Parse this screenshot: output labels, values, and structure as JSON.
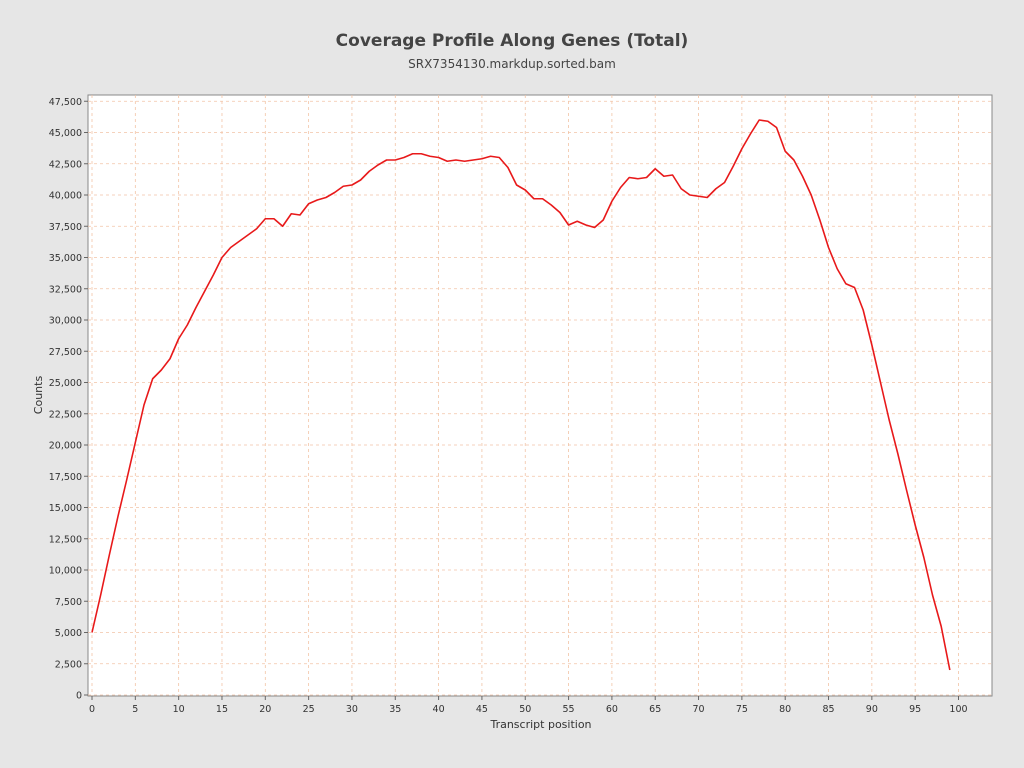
{
  "chart_data": {
    "type": "line",
    "title": "Coverage Profile Along Genes (Total)",
    "subtitle": "SRX7354130.markdup.sorted.bam",
    "xlabel": "Transcript position",
    "ylabel": "Counts",
    "xlim": [
      0,
      104
    ],
    "ylim": [
      0,
      48000
    ],
    "x_ticks": [
      0,
      5,
      10,
      15,
      20,
      25,
      30,
      35,
      40,
      45,
      50,
      55,
      60,
      65,
      70,
      75,
      80,
      85,
      90,
      95,
      100
    ],
    "x_tick_labels": [
      "0",
      "5",
      "10",
      "15",
      "20",
      "25",
      "30",
      "35",
      "40",
      "45",
      "50",
      "55",
      "60",
      "65",
      "70",
      "75",
      "80",
      "85",
      "90",
      "95",
      "100"
    ],
    "y_ticks": [
      0,
      2500,
      5000,
      7500,
      10000,
      12500,
      15000,
      17500,
      20000,
      22500,
      25000,
      27500,
      30000,
      32500,
      35000,
      37500,
      40000,
      42500,
      45000,
      47500
    ],
    "y_tick_labels": [
      "0",
      "2,500",
      "5,000",
      "7,500",
      "10,000",
      "12,500",
      "15,000",
      "17,500",
      "20,000",
      "22,500",
      "25,000",
      "27,500",
      "30,000",
      "32,500",
      "35,000",
      "37,500",
      "40,000",
      "42,500",
      "45,000",
      "47,500"
    ],
    "grid": true,
    "series": [
      {
        "color": "#e8191a",
        "x": [
          0,
          1,
          2,
          3,
          4,
          5,
          6,
          7,
          8,
          9,
          10,
          11,
          12,
          13,
          14,
          15,
          16,
          17,
          18,
          19,
          20,
          21,
          22,
          23,
          24,
          25,
          26,
          27,
          28,
          29,
          30,
          31,
          32,
          33,
          34,
          35,
          36,
          37,
          38,
          39,
          40,
          41,
          42,
          43,
          44,
          45,
          46,
          47,
          48,
          49,
          50,
          51,
          52,
          53,
          54,
          55,
          56,
          57,
          58,
          59,
          60,
          61,
          62,
          63,
          64,
          65,
          66,
          67,
          68,
          69,
          70,
          71,
          72,
          73,
          74,
          75,
          76,
          77,
          78,
          79,
          80,
          81,
          82,
          83,
          84,
          85,
          86,
          87,
          88,
          89,
          90,
          91,
          92,
          93,
          94,
          95,
          96,
          97,
          98,
          99
        ],
        "y": [
          5000,
          8000,
          11200,
          14300,
          17200,
          20200,
          23200,
          25300,
          26000,
          26900,
          28500,
          29600,
          31000,
          32300,
          33600,
          35000,
          35800,
          36300,
          36800,
          37300,
          38100,
          38100,
          37500,
          38500,
          38400,
          39300,
          39600,
          39800,
          40200,
          40700,
          40800,
          41200,
          41900,
          42400,
          42800,
          42800,
          43000,
          43300,
          43300,
          43100,
          43000,
          42700,
          42800,
          42700,
          42800,
          42900,
          43100,
          43000,
          42200,
          40800,
          40400,
          39700,
          39700,
          39200,
          38600,
          37600,
          37900,
          37600,
          37400,
          38000,
          39500,
          40600,
          41400,
          41300,
          41400,
          42100,
          41500,
          41600,
          40500,
          40000,
          39900,
          39800,
          40500,
          41000,
          42300,
          43700,
          44900,
          46000,
          45900,
          45400,
          43500,
          42800,
          41500,
          40000,
          38000,
          35800,
          34100,
          32900,
          32600,
          30800,
          28000,
          25000,
          22000,
          19300,
          16400,
          13600,
          11000,
          8000,
          5500,
          2000
        ]
      }
    ]
  }
}
